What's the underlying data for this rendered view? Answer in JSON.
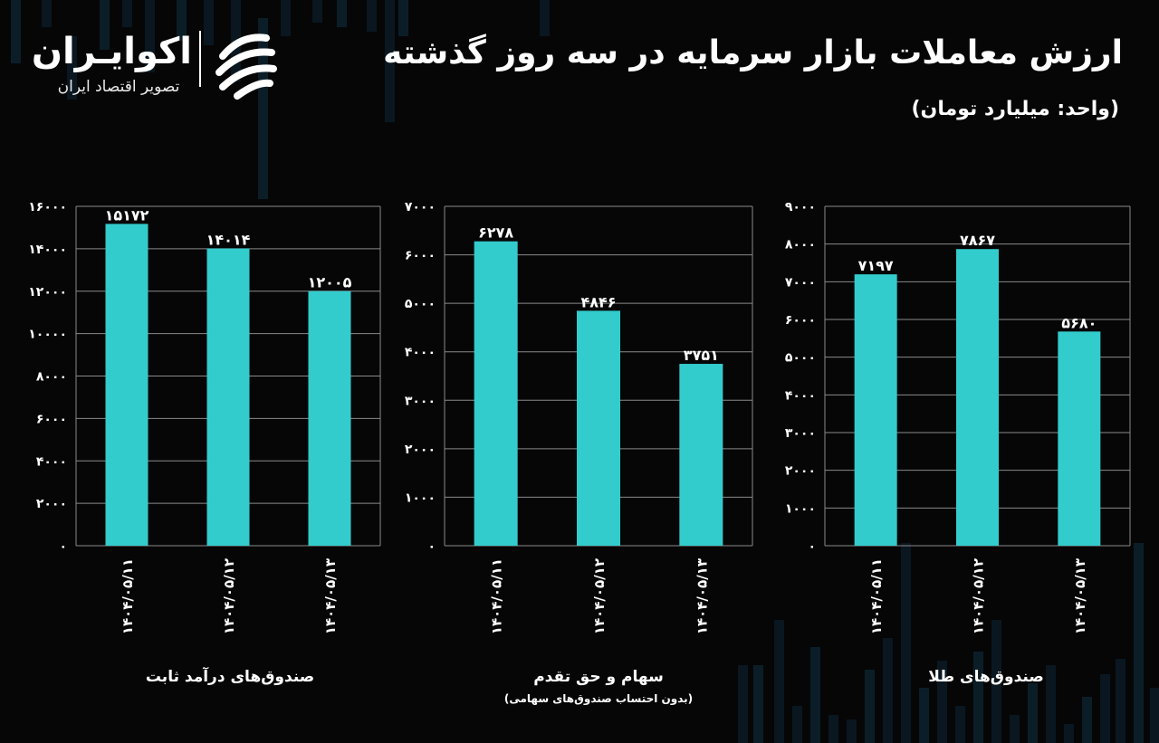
{
  "header": {
    "title": "ارزش معاملات بازار سرمایه در سه روز گذشته",
    "unit": "(واحد: میلیارد تومان)"
  },
  "logo": {
    "name": "اکوایـران",
    "subtitle": "تصویر اقتصاد ایران",
    "icon": "ecoiran-logo-icon"
  },
  "colors": {
    "bar": "#33cccc",
    "background": "#060607",
    "grid": "#8a8a8a",
    "text": "#ffffff"
  },
  "chart_data": [
    {
      "type": "bar",
      "title": "صندوق‌های درآمد ثابت",
      "note": "",
      "categories": [
        "۱۴۰۴/۰۵/۱۱",
        "۱۴۰۴/۰۵/۱۲",
        "۱۴۰۴/۰۵/۱۳"
      ],
      "values": [
        15172,
        14014,
        12005
      ],
      "value_labels": [
        "۱۵۱۷۲",
        "۱۴۰۱۴",
        "۱۲۰۰۵"
      ],
      "ylim": [
        0,
        16000
      ],
      "yticks": [
        0,
        2000,
        4000,
        6000,
        8000,
        10000,
        12000,
        14000,
        16000
      ],
      "ytick_labels": [
        "۰",
        "۲۰۰۰",
        "۴۰۰۰",
        "۶۰۰۰",
        "۸۰۰۰",
        "۱۰۰۰۰",
        "۱۲۰۰۰",
        "۱۴۰۰۰",
        "۱۶۰۰۰"
      ],
      "grid": true
    },
    {
      "type": "bar",
      "title": "سهام و حق تقدم",
      "note": "(بدون احتساب صندوق‌های سهامی)",
      "categories": [
        "۱۴۰۴/۰۵/۱۱",
        "۱۴۰۴/۰۵/۱۲",
        "۱۴۰۴/۰۵/۱۳"
      ],
      "values": [
        6278,
        4846,
        3751
      ],
      "value_labels": [
        "۶۲۷۸",
        "۴۸۴۶",
        "۳۷۵۱"
      ],
      "ylim": [
        0,
        7000
      ],
      "yticks": [
        0,
        1000,
        2000,
        3000,
        4000,
        5000,
        6000,
        7000
      ],
      "ytick_labels": [
        "۰",
        "۱۰۰۰",
        "۲۰۰۰",
        "۳۰۰۰",
        "۴۰۰۰",
        "۵۰۰۰",
        "۶۰۰۰",
        "۷۰۰۰"
      ],
      "grid": true
    },
    {
      "type": "bar",
      "title": "صندوق‌های طلا",
      "note": "",
      "categories": [
        "۱۴۰۴/۰۵/۱۱",
        "۱۴۰۴/۰۵/۱۲",
        "۱۴۰۴/۰۵/۱۳"
      ],
      "values": [
        7197,
        7867,
        5680
      ],
      "value_labels": [
        "۷۱۹۷",
        "۷۸۶۷",
        "۵۶۸۰"
      ],
      "ylim": [
        0,
        9000
      ],
      "yticks": [
        0,
        1000,
        2000,
        3000,
        4000,
        5000,
        6000,
        7000,
        8000,
        9000
      ],
      "ytick_labels": [
        "۰",
        "۱۰۰۰",
        "۲۰۰۰",
        "۳۰۰۰",
        "۴۰۰۰",
        "۵۰۰۰",
        "۶۰۰۰",
        "۷۰۰۰",
        "۸۰۰۰",
        "۹۰۰۰"
      ],
      "grid": true
    }
  ]
}
